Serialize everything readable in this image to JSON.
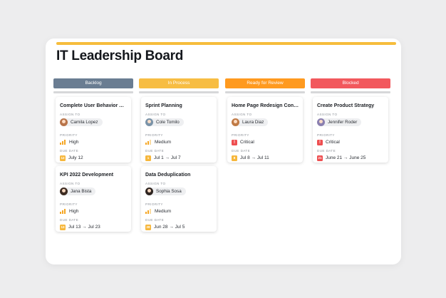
{
  "board": {
    "title": "IT Leadership Board"
  },
  "labels": {
    "assign_to": "ASSIGN TO",
    "priority": "PRIORITY",
    "due_date": "DUE DATE"
  },
  "columns": [
    {
      "name": "Backlog",
      "color": "#6a7d92",
      "cards": [
        {
          "title": "Complete User Behavior An...",
          "assignee": "Camila Lopez",
          "avatar_color": "#b8744a",
          "priority": "High",
          "due": "July 12",
          "due_day": "12",
          "due_color": "#f6b73c"
        },
        {
          "title": "KPI 2022 Development",
          "assignee": "Jana Bista",
          "avatar_color": "#3d2b22",
          "priority": "High",
          "due": "Jul 13 → Jul 23",
          "due_day": "13",
          "due_color": "#f6b73c"
        }
      ]
    },
    {
      "name": "In Process",
      "color": "#f7bd43",
      "cards": [
        {
          "title": "Sprint Planning",
          "assignee": "Cole Tomilo",
          "avatar_color": "#7a93a8",
          "priority": "Medium",
          "due": "Jul 1 → Jul 7",
          "due_day": "1",
          "due_color": "#f6b73c"
        },
        {
          "title": "Data Deduplication",
          "assignee": "Sophia Sosa",
          "avatar_color": "#2e2420",
          "priority": "Medium",
          "due": "Jun 28 → Jul 5",
          "due_day": "28",
          "due_color": "#f6b73c"
        }
      ]
    },
    {
      "name": "Ready for Review",
      "color": "#ff9a1f",
      "cards": [
        {
          "title": "Home Page Redesign Conce...",
          "assignee": "Laura Diaz",
          "avatar_color": "#c07a45",
          "priority": "Critical",
          "due": "Jul 8 → Jul 11",
          "due_day": "8",
          "due_color": "#f6b73c"
        }
      ]
    },
    {
      "name": "Blocked",
      "color": "#f2585d",
      "cards": [
        {
          "title": "Create Product Strategy",
          "assignee": "Jennifer Roder",
          "avatar_color": "#8a7fb0",
          "priority": "Critical",
          "due": "June 21 → June 25",
          "due_day": "21",
          "due_color": "#ee4e50"
        }
      ]
    }
  ]
}
